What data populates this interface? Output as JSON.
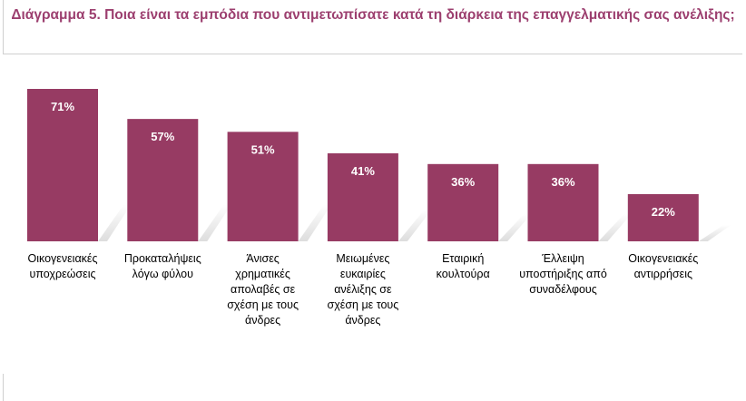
{
  "title": "Διάγραμμα 5. Ποια είναι τα εμπόδια που αντιμετωπίσατε κατά τη διάρκεια της επαγγελματικής σας ανέλιξης;",
  "colors": {
    "bar": "#973b63",
    "title": "#9c3f6f",
    "shadow": "#d9d9d9"
  },
  "chart_data": {
    "type": "bar",
    "categories": [
      [
        "Οικογενειακές",
        "υποχρεώσεις"
      ],
      [
        "Προκαταλήψεις",
        "λόγω φύλου"
      ],
      [
        "Άνισες",
        "χρηματικές",
        "απολαβές σε",
        "σχέση με τους",
        "άνδρες"
      ],
      [
        "Μειωμένες",
        "ευκαιρίες",
        "ανέλιξης σε",
        "σχέση με τους",
        "άνδρες"
      ],
      [
        "Εταιρική",
        "κουλτούρα"
      ],
      [
        "Έλλειψη",
        "υποστήριξης από",
        "συναδέλφους"
      ],
      [
        "Οικογενειακές",
        "αντιρρήσεις"
      ]
    ],
    "values": [
      71,
      57,
      51,
      41,
      36,
      36,
      22
    ],
    "value_labels": [
      "71%",
      "57%",
      "51%",
      "41%",
      "36%",
      "36%",
      "22%"
    ],
    "ylim": [
      0,
      71
    ],
    "grid": false,
    "legend": "none"
  }
}
